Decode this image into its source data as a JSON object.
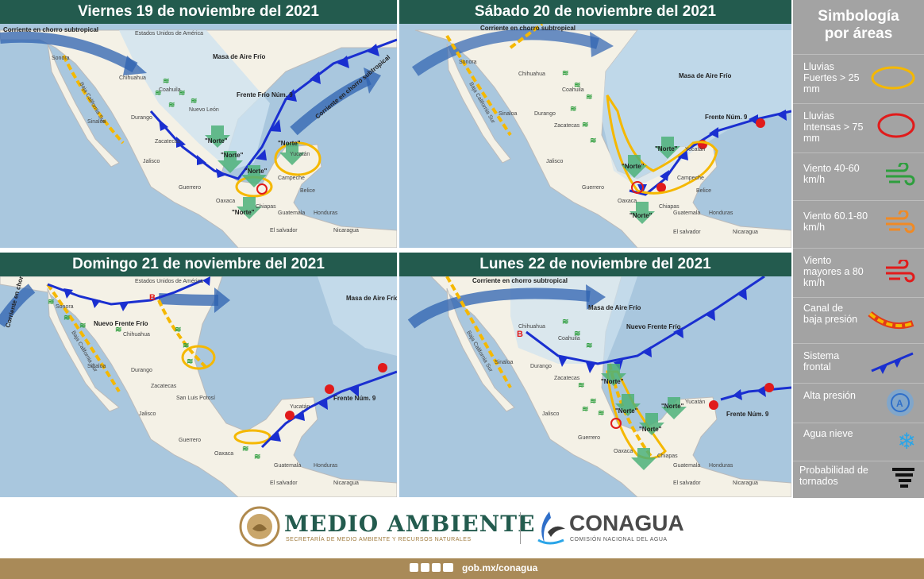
{
  "panels": [
    {
      "title": "Viernes 19 de noviembre del 2021",
      "labels": [
        "Estados Unidos de América",
        "Sonora",
        "Chihuahua",
        "Coahuila",
        "Nuevo León",
        "Durango",
        "Sinaloa",
        "Baja California Sur",
        "Zacatecas",
        "Jalisco",
        "Guerrero",
        "Oaxaca",
        "Chiapas",
        "Yucatán",
        "Campeche",
        "Belice",
        "Guatemala",
        "Honduras",
        "Nicaragua",
        "El salvador",
        "Masa de Aire Frío",
        "Frente Frío Núm. 9",
        "Corriente en chorro subtropical",
        "Corriente en chorro subtropical",
        "\"Norte\"",
        "\"Norte\"",
        "\"Norte\"",
        "\"Norte\"",
        "\"Norte\""
      ]
    },
    {
      "title": "Sábado 20 de noviembre del 2021",
      "labels": [
        "Chihuahua",
        "Sonora",
        "Coahuila",
        "Durango",
        "Zacatecas",
        "Sinaloa",
        "Baja California Sur",
        "Jalisco",
        "Guerrero",
        "Oaxaca",
        "Chiapas",
        "Yucatán",
        "Campeche",
        "Belice",
        "Guatemala",
        "Honduras",
        "Nicaragua",
        "El salvador",
        "Masa de Aire Frío",
        "Frente Núm. 9",
        "Corriente en chorro subtropical",
        "\"Norte\"",
        "\"Norte\"",
        "\"Norte\""
      ]
    },
    {
      "title": "Domingo 21 de noviembre del 2021",
      "labels": [
        "Estados Unidos de América",
        "Sonora",
        "Chihuahua",
        "Nuevo Frente Frío",
        "Durango",
        "Sinaloa",
        "Baja California Sur",
        "Zacatecas",
        "San Luis Potosí",
        "Jalisco",
        "Guerrero",
        "Oaxaca",
        "Yucatán",
        "Guatemala",
        "Honduras",
        "Nicaragua",
        "El salvador",
        "Masa de Aire Frío",
        "Frente Núm. 9",
        "Corriente en chorro subtropical",
        "B"
      ]
    },
    {
      "title": "Lunes 22 de noviembre del 2021",
      "labels": [
        "Chihuahua",
        "Coahuila",
        "Durango",
        "Zacatecas",
        "Sinaloa",
        "Baja California Sur",
        "Jalisco",
        "Guerrero",
        "Oaxaca",
        "Chiapas",
        "Yucatán",
        "Guatemala",
        "Honduras",
        "Nicaragua",
        "El salvador",
        "Masa de Aire Frío",
        "Nuevo Frente Frío",
        "Frente Núm. 9",
        "Corriente en chorro subtropical",
        "B",
        "\"Norte\"",
        "\"Norte\"",
        "\"Norte\"",
        "\"Norte\""
      ]
    }
  ],
  "legend": {
    "title": "Simbología por áreas",
    "items": [
      {
        "label": "Lluvias Fuertes > 25 mm",
        "icon": "yellow-ellipse-icon",
        "color": "#f5b800"
      },
      {
        "label": "Lluvias Intensas > 75 mm",
        "icon": "red-ellipse-icon",
        "color": "#e11b1b"
      },
      {
        "label": "Viento 40-60 km/h",
        "icon": "green-wind-icon",
        "color": "#2e9e3e"
      },
      {
        "label": "Viento 60.1-80 km/h",
        "icon": "orange-wind-icon",
        "color": "#f08a24"
      },
      {
        "label": "Viento mayores a 80 km/h",
        "icon": "red-wind-icon",
        "color": "#e11b1b"
      },
      {
        "label": "Canal de baja presión",
        "icon": "trough-icon",
        "color": "#f5b800"
      },
      {
        "label": "Sistema frontal",
        "icon": "cold-front-icon",
        "color": "#1a2fd0"
      },
      {
        "label": "Alta presión",
        "icon": "high-pressure-icon",
        "color": "#2f6fc9"
      },
      {
        "label": "Agua nieve",
        "icon": "snowflake-icon",
        "color": "#2aa5e8"
      },
      {
        "label": "Probabilidad de tornados",
        "icon": "tornado-icon",
        "color": "#111111"
      }
    ]
  },
  "footer": {
    "medio_ambiente": "MEDIO AMBIENTE",
    "medio_ambiente_sub": "SECRETARÍA DE MEDIO AMBIENTE Y RECURSOS NATURALES",
    "conagua": "CONAGUA",
    "conagua_sub": "COMISIÓN NACIONAL DEL AGUA",
    "url": "gob.mx/conagua"
  },
  "colors": {
    "header": "#235b4e",
    "legend_bg": "#a3a3a3",
    "gold": "#a98a58",
    "ocean": "#a9c7de",
    "land": "#f4f1e6"
  }
}
